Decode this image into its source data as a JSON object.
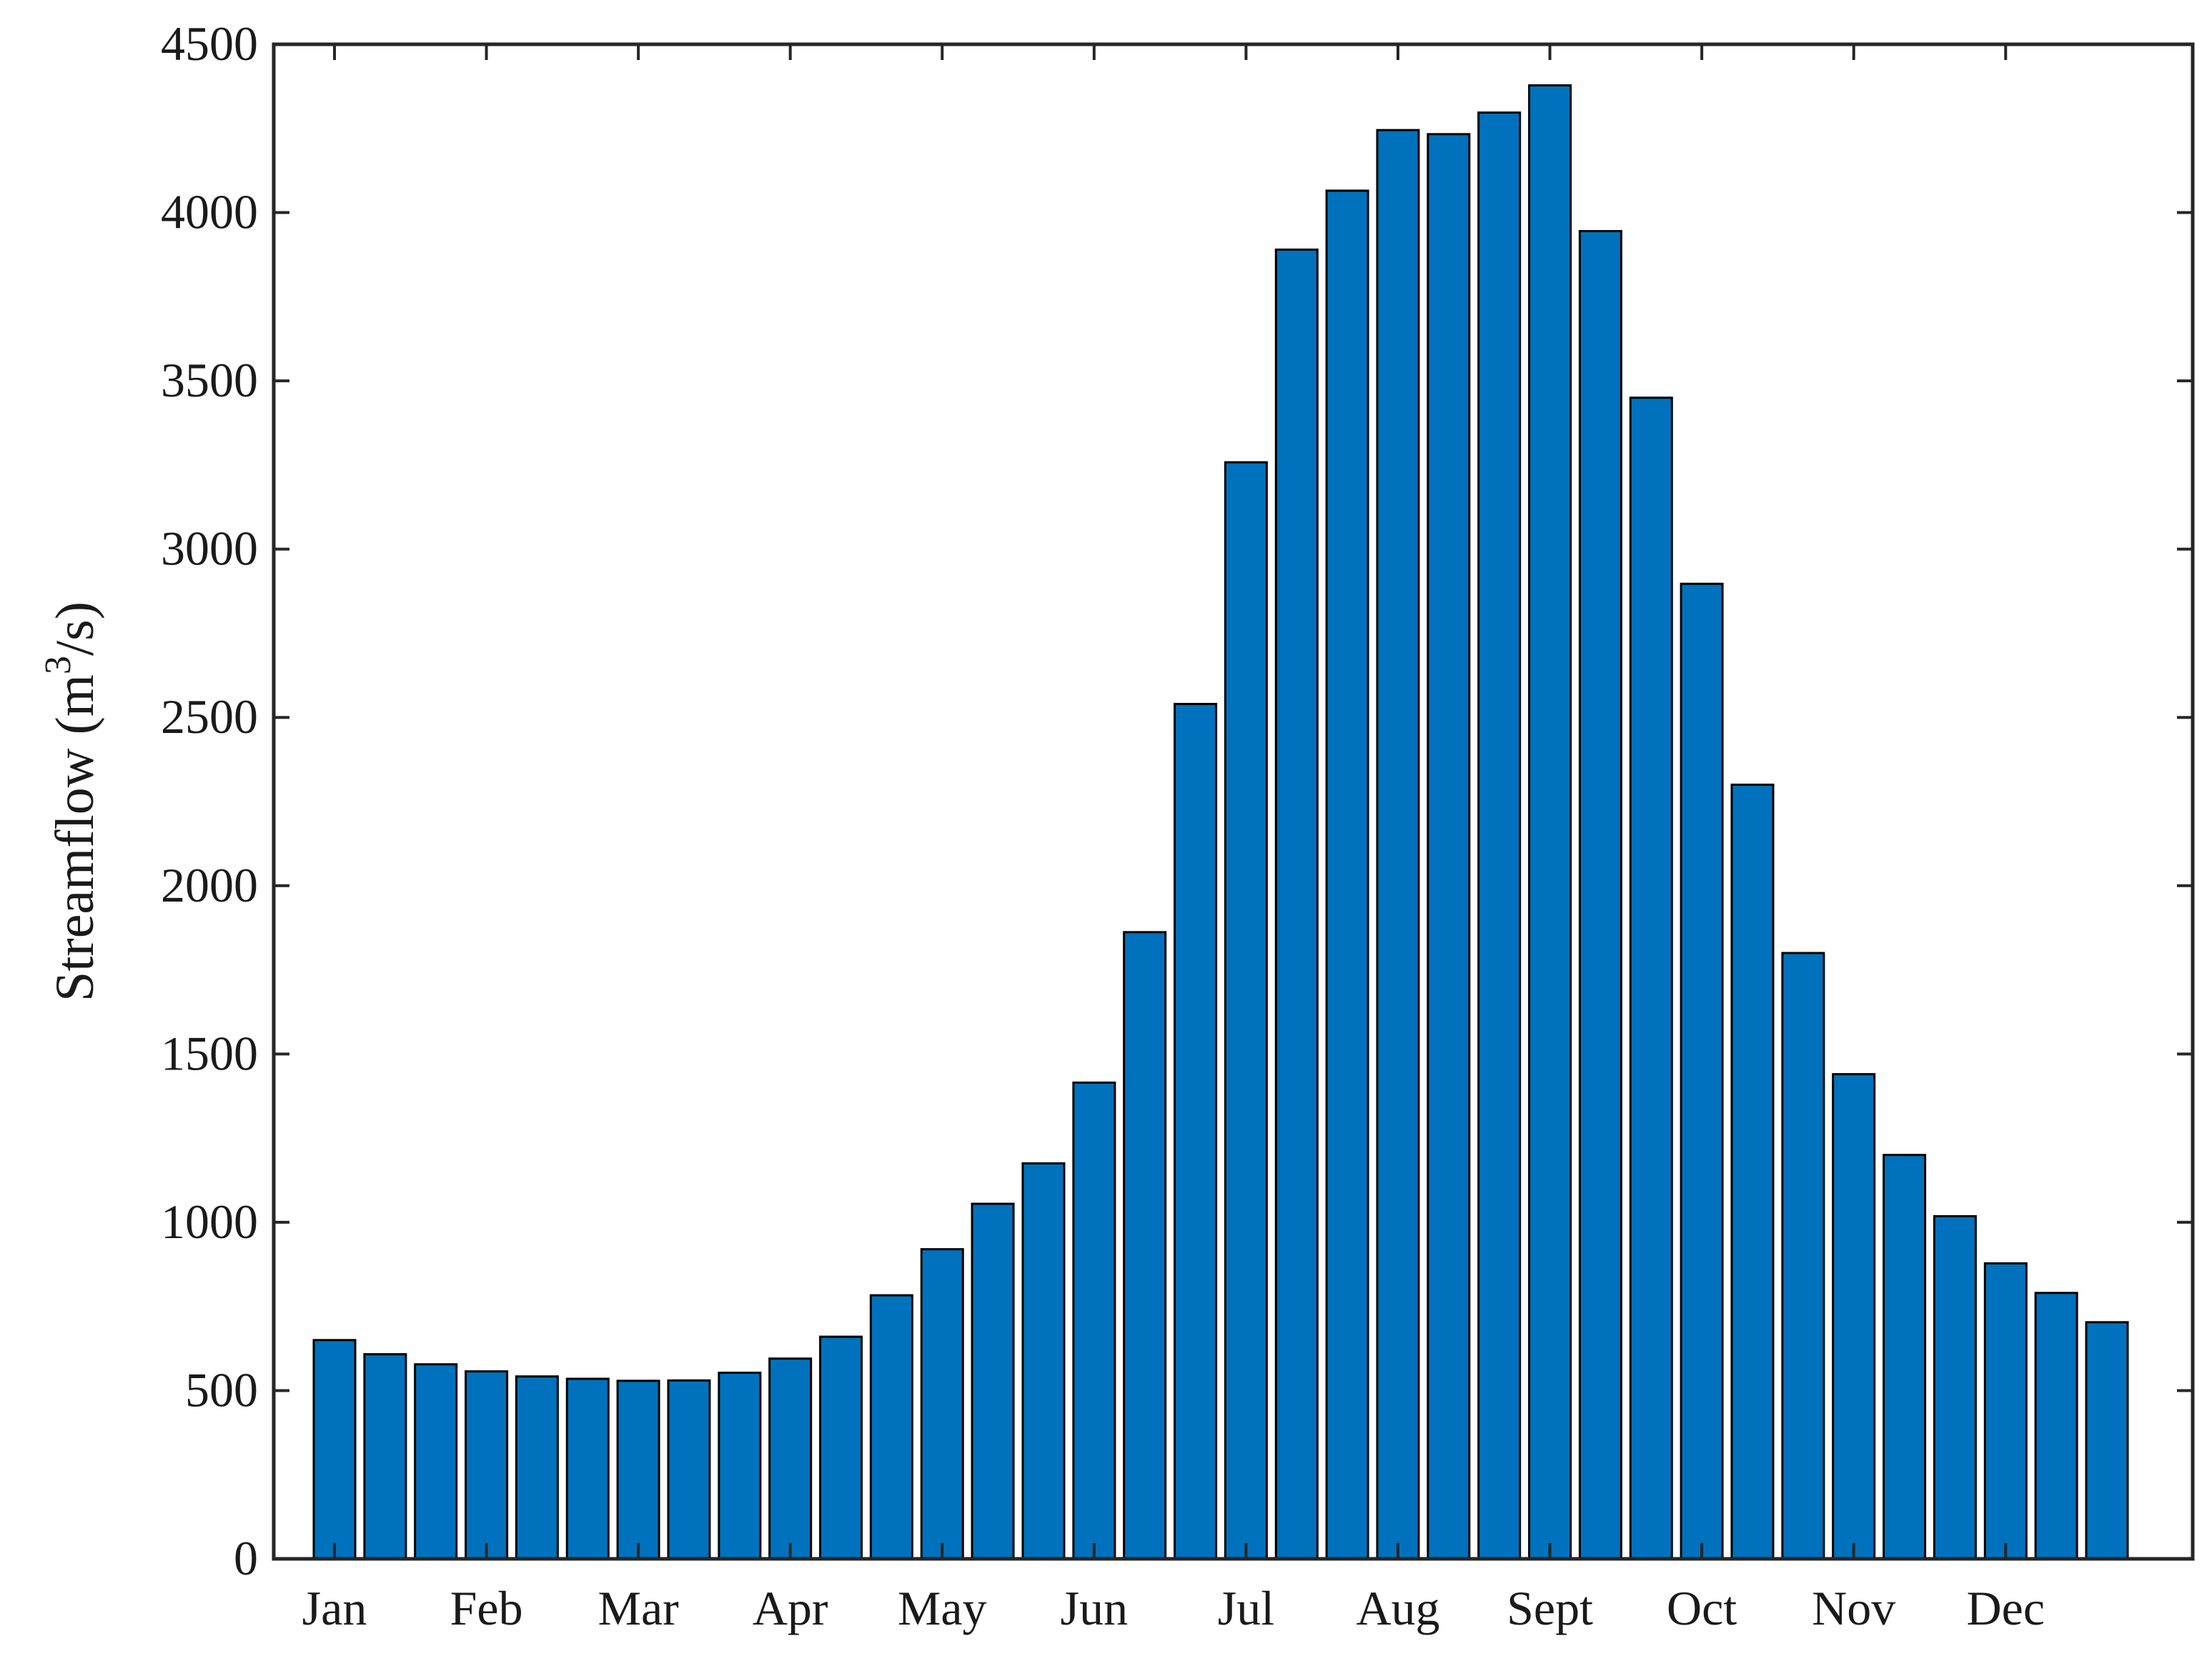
{
  "chart_data": {
    "type": "bar",
    "title": "",
    "xlabel": "",
    "ylabel": "Streamflow (m",
    "ylabel_superscript": "3",
    "ylabel_suffix": "/s)",
    "ylim": [
      0,
      4500
    ],
    "yticks": [
      0,
      500,
      1000,
      1500,
      2000,
      2500,
      3000,
      3500,
      4000,
      4500
    ],
    "xtick_labels": [
      "Jan",
      "Feb",
      "Mar",
      "Apr",
      "May",
      "Jun",
      "Jul",
      "Aug",
      "Sept",
      "Oct",
      "Nov",
      "Dec"
    ],
    "bars_per_month": 3,
    "grid": false,
    "legend": "none",
    "bar_color": "#0072bd",
    "bar_edge_color": "#000000",
    "values": [
      650,
      608,
      578,
      557,
      542,
      535,
      529,
      530,
      553,
      595,
      660,
      783,
      920,
      1055,
      1175,
      1415,
      1862,
      2540,
      3258,
      3890,
      4065,
      4245,
      4233,
      4297,
      4378,
      3945,
      3450,
      2897,
      2300,
      1800,
      1440,
      1200,
      1018,
      878,
      790,
      703
    ]
  }
}
